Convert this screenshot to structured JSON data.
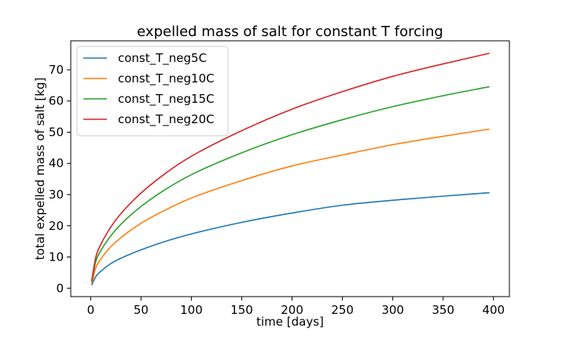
{
  "chart_data": {
    "type": "line",
    "title": "expelled mass of salt for constant T forcing",
    "xlabel": "time [days]",
    "ylabel": "total expelled mass of salt [kg]",
    "xlim": [
      -19.8,
      415.8
    ],
    "ylim": [
      -2.7,
      79.3
    ],
    "x_ticks": [
      0,
      50,
      100,
      150,
      200,
      250,
      300,
      350,
      400
    ],
    "y_ticks": [
      0,
      10,
      20,
      30,
      40,
      50,
      60,
      70
    ],
    "grid": false,
    "legend_position": "top-left",
    "x": [
      1,
      5,
      10,
      20,
      30,
      50,
      75,
      100,
      150,
      200,
      250,
      300,
      350,
      396
    ],
    "series": [
      {
        "name": "const_T_neg5C",
        "color": "#1f77b4",
        "values": [
          1.0,
          3.7,
          5.4,
          7.9,
          9.6,
          12.3,
          15.1,
          17.4,
          21.1,
          24.1,
          26.6,
          28.2,
          29.5,
          30.6
        ]
      },
      {
        "name": "const_T_neg10C",
        "color": "#ff7f0e",
        "values": [
          1.5,
          6.5,
          9.3,
          13.3,
          16.2,
          20.8,
          25.2,
          28.9,
          34.5,
          39.2,
          42.7,
          46.0,
          48.7,
          51.0
        ]
      },
      {
        "name": "const_T_neg15C",
        "color": "#2ca02c",
        "values": [
          2.0,
          8.5,
          12.0,
          16.8,
          20.5,
          26.2,
          31.8,
          36.4,
          43.4,
          49.2,
          54.0,
          58.2,
          61.7,
          64.6
        ]
      },
      {
        "name": "const_T_neg20C",
        "color": "#d62728",
        "values": [
          2.4,
          9.9,
          14.0,
          19.6,
          23.9,
          30.5,
          37.0,
          42.3,
          50.5,
          57.4,
          63.0,
          67.9,
          71.9,
          75.3
        ]
      }
    ]
  }
}
